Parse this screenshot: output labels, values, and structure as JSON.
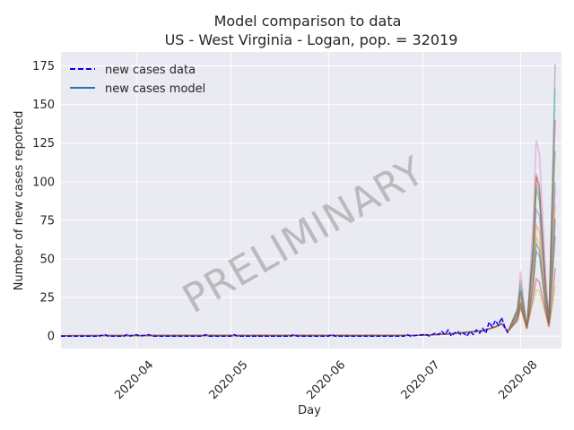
{
  "chart_data": {
    "type": "line",
    "title_line1": "Model comparison to data",
    "title_line2": "US - West Virginia - Logan, pop. = 32019",
    "xlabel": "Day",
    "ylabel": "Number of new cases reported",
    "watermark": "PRELIMINARY",
    "x_range": [
      "2020-03-08",
      "2020-08-14"
    ],
    "ylim": [
      -8,
      184
    ],
    "yticks": [
      0,
      25,
      50,
      75,
      100,
      125,
      150,
      175
    ],
    "xticks": [
      {
        "date": "2020-04-01",
        "label": "2020-04"
      },
      {
        "date": "2020-05-01",
        "label": "2020-05"
      },
      {
        "date": "2020-06-01",
        "label": "2020-06"
      },
      {
        "date": "2020-07-01",
        "label": "2020-07"
      },
      {
        "date": "2020-08-01",
        "label": "2020-08"
      }
    ],
    "grid": true,
    "legend_position": "top-left",
    "legend": [
      {
        "label": "new cases data",
        "style": "dashed",
        "color": "#0000ff"
      },
      {
        "label": "new cases model",
        "style": "solid",
        "color": "#1f77b4"
      }
    ],
    "data_series": {
      "name": "new cases data",
      "points": [
        [
          "2020-03-08",
          0
        ],
        [
          "2020-03-20",
          0
        ],
        [
          "2020-03-22",
          1
        ],
        [
          "2020-03-23",
          0
        ],
        [
          "2020-03-28",
          0
        ],
        [
          "2020-03-29",
          1
        ],
        [
          "2020-03-30",
          0
        ],
        [
          "2020-04-01",
          1
        ],
        [
          "2020-04-02",
          0
        ],
        [
          "2020-04-05",
          1
        ],
        [
          "2020-04-06",
          0
        ],
        [
          "2020-04-22",
          0
        ],
        [
          "2020-04-23",
          1
        ],
        [
          "2020-04-24",
          0
        ],
        [
          "2020-05-01",
          0
        ],
        [
          "2020-05-02",
          1
        ],
        [
          "2020-05-03",
          0
        ],
        [
          "2020-05-20",
          0
        ],
        [
          "2020-05-21",
          1
        ],
        [
          "2020-05-22",
          0
        ],
        [
          "2020-06-01",
          0
        ],
        [
          "2020-06-02",
          1
        ],
        [
          "2020-06-03",
          0
        ],
        [
          "2020-06-25",
          0
        ],
        [
          "2020-06-26",
          1
        ],
        [
          "2020-06-27",
          0
        ],
        [
          "2020-07-01",
          1
        ],
        [
          "2020-07-02",
          1
        ],
        [
          "2020-07-03",
          0
        ],
        [
          "2020-07-05",
          2
        ],
        [
          "2020-07-06",
          1
        ],
        [
          "2020-07-07",
          3
        ],
        [
          "2020-07-08",
          1
        ],
        [
          "2020-07-09",
          4
        ],
        [
          "2020-07-10",
          0
        ],
        [
          "2020-07-11",
          2
        ],
        [
          "2020-07-12",
          3
        ],
        [
          "2020-07-13",
          1
        ],
        [
          "2020-07-14",
          2
        ],
        [
          "2020-07-15",
          0
        ],
        [
          "2020-07-16",
          3
        ],
        [
          "2020-07-17",
          1
        ],
        [
          "2020-07-18",
          4
        ],
        [
          "2020-07-19",
          2
        ],
        [
          "2020-07-20",
          5
        ],
        [
          "2020-07-21",
          2
        ],
        [
          "2020-07-22",
          9
        ],
        [
          "2020-07-23",
          6
        ],
        [
          "2020-07-24",
          10
        ],
        [
          "2020-07-25",
          7
        ],
        [
          "2020-07-26",
          12
        ],
        [
          "2020-07-27",
          6
        ],
        [
          "2020-07-28",
          2
        ]
      ]
    },
    "model_runs": [
      {
        "color": "#e377c2",
        "points": [
          [
            "2020-07-28",
            3
          ],
          [
            "2020-07-31",
            16
          ],
          [
            "2020-08-01",
            42
          ],
          [
            "2020-08-03",
            6
          ],
          [
            "2020-08-05",
            75
          ],
          [
            "2020-08-06",
            127
          ],
          [
            "2020-08-07",
            118
          ],
          [
            "2020-08-09",
            40
          ],
          [
            "2020-08-10",
            12
          ],
          [
            "2020-08-11",
            60
          ],
          [
            "2020-08-12",
            95
          ]
        ]
      },
      {
        "color": "#7f7f7f",
        "points": [
          [
            "2020-07-28",
            3
          ],
          [
            "2020-07-31",
            18
          ],
          [
            "2020-08-01",
            36
          ],
          [
            "2020-08-03",
            5
          ],
          [
            "2020-08-05",
            60
          ],
          [
            "2020-08-06",
            105
          ],
          [
            "2020-08-07",
            98
          ],
          [
            "2020-08-09",
            30
          ],
          [
            "2020-08-10",
            9
          ],
          [
            "2020-08-11",
            90
          ],
          [
            "2020-08-12",
            176
          ]
        ]
      },
      {
        "color": "#17becf",
        "points": [
          [
            "2020-07-28",
            3
          ],
          [
            "2020-07-31",
            17
          ],
          [
            "2020-08-01",
            33
          ],
          [
            "2020-08-03",
            5
          ],
          [
            "2020-08-05",
            58
          ],
          [
            "2020-08-06",
            98
          ],
          [
            "2020-08-07",
            92
          ],
          [
            "2020-08-09",
            28
          ],
          [
            "2020-08-10",
            10
          ],
          [
            "2020-08-11",
            85
          ],
          [
            "2020-08-12",
            160
          ]
        ]
      },
      {
        "color": "#d62728",
        "points": [
          [
            "2020-07-28",
            3
          ],
          [
            "2020-07-31",
            16
          ],
          [
            "2020-08-01",
            30
          ],
          [
            "2020-08-03",
            5
          ],
          [
            "2020-08-05",
            55
          ],
          [
            "2020-08-06",
            103
          ],
          [
            "2020-08-07",
            95
          ],
          [
            "2020-08-09",
            30
          ],
          [
            "2020-08-10",
            10
          ],
          [
            "2020-08-11",
            80
          ],
          [
            "2020-08-12",
            140
          ]
        ]
      },
      {
        "color": "#2ca02c",
        "points": [
          [
            "2020-07-28",
            3
          ],
          [
            "2020-07-31",
            15
          ],
          [
            "2020-08-01",
            29
          ],
          [
            "2020-08-03",
            5
          ],
          [
            "2020-08-05",
            52
          ],
          [
            "2020-08-06",
            95
          ],
          [
            "2020-08-07",
            88
          ],
          [
            "2020-08-09",
            28
          ],
          [
            "2020-08-10",
            9
          ],
          [
            "2020-08-11",
            70
          ],
          [
            "2020-08-12",
            120
          ]
        ]
      },
      {
        "color": "#9467bd",
        "points": [
          [
            "2020-07-28",
            3
          ],
          [
            "2020-07-31",
            14
          ],
          [
            "2020-08-01",
            27
          ],
          [
            "2020-08-03",
            5
          ],
          [
            "2020-08-05",
            46
          ],
          [
            "2020-08-06",
            82
          ],
          [
            "2020-08-07",
            78
          ],
          [
            "2020-08-09",
            25
          ],
          [
            "2020-08-10",
            9
          ],
          [
            "2020-08-11",
            55
          ],
          [
            "2020-08-12",
            100
          ]
        ]
      },
      {
        "color": "#ff7f0e",
        "points": [
          [
            "2020-07-28",
            3
          ],
          [
            "2020-07-31",
            13
          ],
          [
            "2020-08-01",
            25
          ],
          [
            "2020-08-03",
            5
          ],
          [
            "2020-08-05",
            40
          ],
          [
            "2020-08-06",
            72
          ],
          [
            "2020-08-07",
            68
          ],
          [
            "2020-08-09",
            22
          ],
          [
            "2020-08-10",
            8
          ],
          [
            "2020-08-11",
            45
          ],
          [
            "2020-08-12",
            85
          ]
        ]
      },
      {
        "color": "#bcbd22",
        "points": [
          [
            "2020-07-28",
            3
          ],
          [
            "2020-07-31",
            12
          ],
          [
            "2020-08-01",
            23
          ],
          [
            "2020-08-03",
            5
          ],
          [
            "2020-08-05",
            36
          ],
          [
            "2020-08-06",
            64
          ],
          [
            "2020-08-07",
            60
          ],
          [
            "2020-08-09",
            20
          ],
          [
            "2020-08-10",
            8
          ],
          [
            "2020-08-11",
            40
          ],
          [
            "2020-08-12",
            75
          ]
        ]
      },
      {
        "color": "#8c564b",
        "points": [
          [
            "2020-07-28",
            3
          ],
          [
            "2020-07-31",
            11
          ],
          [
            "2020-08-01",
            21
          ],
          [
            "2020-08-03",
            5
          ],
          [
            "2020-08-05",
            32
          ],
          [
            "2020-08-06",
            55
          ],
          [
            "2020-08-07",
            52
          ],
          [
            "2020-08-09",
            18
          ],
          [
            "2020-08-10",
            7
          ],
          [
            "2020-08-11",
            35
          ],
          [
            "2020-08-12",
            65
          ]
        ]
      },
      {
        "color": "#1f77b4",
        "points": [
          [
            "2020-07-28",
            3
          ],
          [
            "2020-07-31",
            12
          ],
          [
            "2020-08-01",
            22
          ],
          [
            "2020-08-03",
            5
          ],
          [
            "2020-08-05",
            34
          ],
          [
            "2020-08-06",
            60
          ],
          [
            "2020-08-07",
            56
          ],
          [
            "2020-08-09",
            19
          ],
          [
            "2020-08-10",
            8
          ],
          [
            "2020-08-11",
            38
          ],
          [
            "2020-08-12",
            76
          ]
        ]
      },
      {
        "color": "#bcbd22",
        "points": [
          [
            "2020-07-28",
            3
          ],
          [
            "2020-07-31",
            10
          ],
          [
            "2020-08-01",
            18
          ],
          [
            "2020-08-03",
            5
          ],
          [
            "2020-08-05",
            22
          ],
          [
            "2020-08-06",
            30
          ],
          [
            "2020-08-07",
            29
          ],
          [
            "2020-08-09",
            14
          ],
          [
            "2020-08-10",
            6
          ],
          [
            "2020-08-11",
            18
          ],
          [
            "2020-08-12",
            33
          ]
        ]
      },
      {
        "color": "#d62728",
        "points": [
          [
            "2020-07-28",
            3
          ],
          [
            "2020-07-31",
            10
          ],
          [
            "2020-08-01",
            19
          ],
          [
            "2020-08-03",
            5
          ],
          [
            "2020-08-05",
            25
          ],
          [
            "2020-08-06",
            37
          ],
          [
            "2020-08-07",
            35
          ],
          [
            "2020-08-09",
            15
          ],
          [
            "2020-08-10",
            6
          ],
          [
            "2020-08-11",
            22
          ],
          [
            "2020-08-12",
            44
          ]
        ]
      }
    ]
  }
}
